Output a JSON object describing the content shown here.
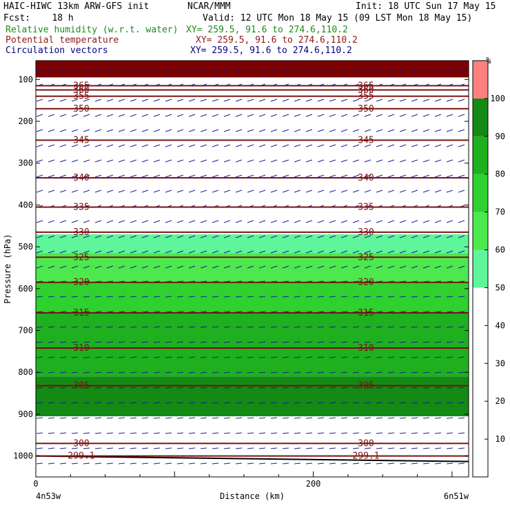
{
  "header": {
    "model": "HAIC-HIWC 13km ARW-GFS init",
    "org": "NCAR/MMM",
    "init": "Init: 18 UTC Sun 17 May 15",
    "fcst": "Fcst:    18 h",
    "valid": "Valid: 12 UTC Mon 18 May 15 (09 LST Mon 18 May 15)",
    "fields": [
      {
        "label": "Relative humidity (w.r.t. water)",
        "xy": "XY= 259.5, 91.6 to 274.6,110.2",
        "color": "#1a8c1a"
      },
      {
        "label": "Potential temperature",
        "xy": "XY= 259.5, 91.6 to 274.6,110.2",
        "color": "#8b1a1a"
      },
      {
        "label": "Circulation vectors",
        "xy": "XY= 259.5, 91.6 to 274.6,110.2",
        "color": "#000080"
      }
    ]
  },
  "chart_data": {
    "type": "heatmap",
    "xlabel": "Distance (km)",
    "ylabel": "Pressure (hPa)",
    "xlim": [
      0,
      312
    ],
    "ylim": [
      1050,
      55
    ],
    "x_ticks": [
      0,
      200
    ],
    "y_ticks": [
      100,
      200,
      300,
      400,
      500,
      600,
      700,
      800,
      900,
      1000
    ],
    "x_endpoints": {
      "left": "4n53w",
      "right": "6n51w"
    },
    "colorbar": {
      "unit": "%",
      "ticks": [
        10,
        20,
        30,
        40,
        50,
        60,
        70,
        80,
        90,
        100
      ],
      "levels": [
        {
          "from": 50,
          "to": 60,
          "color": "#5ff59a"
        },
        {
          "from": 60,
          "to": 70,
          "color": "#4de84d"
        },
        {
          "from": 70,
          "to": 80,
          "color": "#2ed12e"
        },
        {
          "from": 80,
          "to": 90,
          "color": "#1fb01f"
        },
        {
          "from": 90,
          "to": 100,
          "color": "#138a13"
        },
        {
          "from": 100,
          "to": 110,
          "color": "#ff7f7f"
        }
      ]
    },
    "rh_bands": [
      {
        "level": "100+",
        "color": "#7b0000",
        "p_top": 55,
        "p_bottom": 95
      },
      {
        "level": "50-60",
        "color": "#5ff59a",
        "p_top": 470,
        "p_bottom": 515
      },
      {
        "level": "60-70",
        "color": "#4de84d",
        "p_top": 515,
        "p_bottom": 585
      },
      {
        "level": "70-80",
        "color": "#2ed12e",
        "p_top": 585,
        "p_bottom": 655
      },
      {
        "level": "80-90",
        "color": "#1fb01f",
        "p_top": 655,
        "p_bottom": 810
      },
      {
        "level": "90-100",
        "color": "#138a13",
        "p_top": 810,
        "p_bottom": 905
      }
    ],
    "potential_temperature_isolines": [
      {
        "value": "365",
        "p": 115
      },
      {
        "value": "360",
        "p": 125
      },
      {
        "value": "355",
        "p": 140
      },
      {
        "value": "350",
        "p": 170
      },
      {
        "value": "345",
        "p": 245
      },
      {
        "value": "340",
        "p": 335
      },
      {
        "value": "335",
        "p": 405
      },
      {
        "value": "330",
        "p": 465
      },
      {
        "value": "325",
        "p": 525
      },
      {
        "value": "320",
        "p": 585
      },
      {
        "value": "315",
        "p": 658
      },
      {
        "value": "310",
        "p": 742
      },
      {
        "value": "305",
        "p": 832
      },
      {
        "value": "300",
        "p": 970
      },
      {
        "value": "299.1",
        "p": 1000
      }
    ]
  }
}
